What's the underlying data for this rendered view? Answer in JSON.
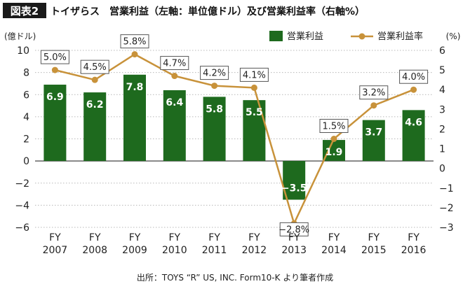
{
  "figure_label": "図表2",
  "title": "トイザらス　営業利益（左軸：単位億ドル）及び営業利益率（右軸%）",
  "source": "出所：TOYS “R” US, INC. Form10-K より筆者作成",
  "colors": {
    "bar": "#1e6a1e",
    "line": "#c8923a",
    "label_bg": "#ffffff"
  },
  "chart_data": {
    "type": "bar",
    "categories": [
      "FY\n2007",
      "FY\n2008",
      "FY\n2009",
      "FY\n2010",
      "FY\n2011",
      "FY\n2012",
      "FY\n2013",
      "FY\n2014",
      "FY\n2015",
      "FY\n2016"
    ],
    "series": [
      {
        "name": "営業利益",
        "type": "bar",
        "axis": "left",
        "values": [
          6.9,
          6.2,
          7.8,
          6.4,
          5.8,
          5.5,
          -3.5,
          1.9,
          3.7,
          4.6
        ],
        "labels": [
          "6.9",
          "6.2",
          "7.8",
          "6.4",
          "5.8",
          "5.5",
          "−3.5",
          "1.9",
          "3.7",
          "4.6"
        ]
      },
      {
        "name": "営業利益率",
        "type": "line",
        "axis": "right",
        "values": [
          5.0,
          4.5,
          5.8,
          4.7,
          4.2,
          4.1,
          -2.8,
          1.5,
          3.2,
          4.0
        ],
        "labels": [
          "5.0%",
          "4.5%",
          "5.8%",
          "4.7%",
          "4.2%",
          "4.1%",
          "−2.8%",
          "1.5%",
          "3.2%",
          "4.0%"
        ]
      }
    ],
    "y_left": {
      "label": "(億ドル)",
      "lim": [
        -6,
        10
      ],
      "ticks": [
        10,
        8,
        6,
        4,
        2,
        0,
        -2,
        -4,
        -6
      ],
      "tick_labels": [
        "10",
        "8",
        "6",
        "4",
        "2",
        "0",
        "−2",
        "−4",
        "−6"
      ]
    },
    "y_right": {
      "label": "(%)",
      "lim": [
        -3,
        6
      ],
      "ticks": [
        6,
        5,
        4,
        3,
        2,
        1,
        0,
        -1,
        -2,
        -3
      ],
      "tick_labels": [
        "6",
        "5",
        "4",
        "3",
        "2",
        "1",
        "0",
        "−1",
        "−2",
        "−3"
      ]
    },
    "legend": {
      "position": "top-right"
    },
    "grid": "horizontal-dotted"
  }
}
